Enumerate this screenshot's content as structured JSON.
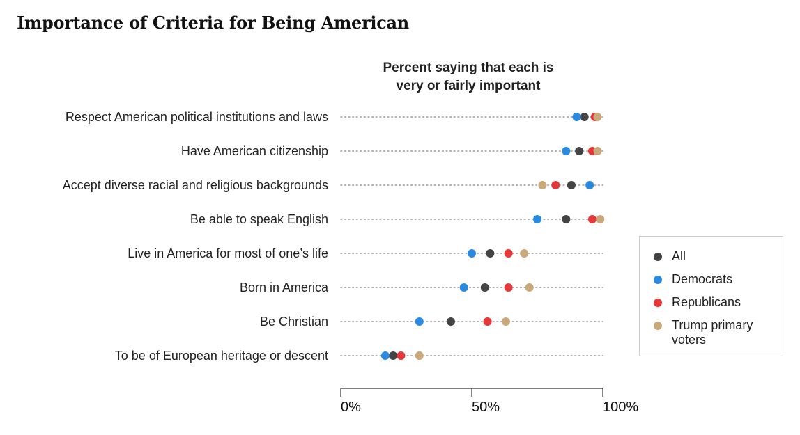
{
  "title": "Importance of Criteria for Being American",
  "subtitle": [
    "Percent saying that each is",
    "very or fairly important"
  ],
  "legend": [
    {
      "label": "All",
      "color": "#444444"
    },
    {
      "label": "Democrats",
      "color": "#2a8ae0"
    },
    {
      "label": "Republicans",
      "color": "#e6383a"
    },
    {
      "label": "Trump primary voters",
      "color": "#c9a97a"
    }
  ],
  "chart_data": {
    "type": "scatter",
    "title": "Importance of Criteria for Being American",
    "subtitle": "Percent saying that each is very or fairly important",
    "categories": [
      "Respect American political institutions and laws",
      "Have American citizenship",
      "Accept diverse racial and religious backgrounds",
      "Be able to speak English",
      "Live in America for most of one’s life",
      "Born in America",
      "Be Christian",
      "To be of European heritage or descent"
    ],
    "series": [
      {
        "name": "All",
        "color": "#444444",
        "values": [
          93,
          91,
          88,
          86,
          57,
          55,
          42,
          20
        ]
      },
      {
        "name": "Democrats",
        "color": "#2a8ae0",
        "values": [
          90,
          86,
          95,
          75,
          50,
          47,
          30,
          17
        ]
      },
      {
        "name": "Republicans",
        "color": "#e6383a",
        "values": [
          97,
          96,
          82,
          96,
          64,
          64,
          56,
          23
        ]
      },
      {
        "name": "Trump primary voters",
        "color": "#c9a97a",
        "values": [
          98,
          98,
          77,
          99,
          70,
          72,
          63,
          30
        ]
      }
    ],
    "xlim": [
      0,
      100
    ],
    "xticks": [
      "0%",
      "50%",
      "100%"
    ],
    "legend_position": "right"
  }
}
